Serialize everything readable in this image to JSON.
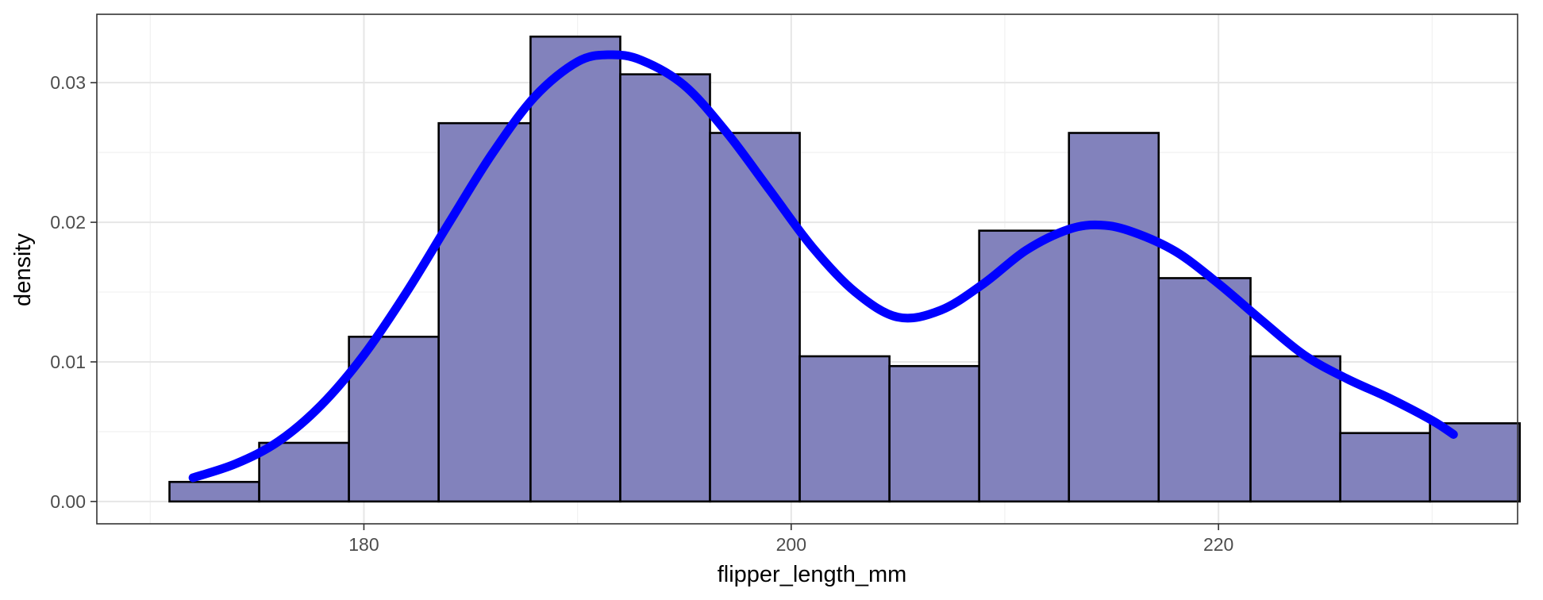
{
  "chart_data": {
    "type": "bar",
    "subtype": "histogram with density curve",
    "title": "",
    "xlabel": "flipper_length_mm",
    "ylabel": "density",
    "xlim": [
      167.5,
      234.0
    ],
    "ylim": [
      -0.0016,
      0.0349
    ],
    "x_ticks": [
      180,
      200,
      220
    ],
    "x_tick_labels": [
      "180",
      "200",
      "220"
    ],
    "x_minor_ticks": [
      170,
      190,
      210,
      230
    ],
    "y_ticks": [
      0.0,
      0.01,
      0.02,
      0.03
    ],
    "y_tick_labels": [
      "0.00",
      "0.01",
      "0.02",
      "0.03"
    ],
    "y_minor_ticks": [
      0.005,
      0.015,
      0.025
    ],
    "grid": true,
    "bins": [
      {
        "x_start": 170.9,
        "x_end": 175.1,
        "density": 0.0014
      },
      {
        "x_start": 175.1,
        "x_end": 179.3,
        "density": 0.0042
      },
      {
        "x_start": 179.3,
        "x_end": 183.5,
        "density": 0.0118
      },
      {
        "x_start": 183.5,
        "x_end": 187.8,
        "density": 0.0271
      },
      {
        "x_start": 187.8,
        "x_end": 192.0,
        "density": 0.0333
      },
      {
        "x_start": 192.0,
        "x_end": 196.2,
        "density": 0.0306
      },
      {
        "x_start": 196.2,
        "x_end": 200.4,
        "density": 0.0264
      },
      {
        "x_start": 200.4,
        "x_end": 204.6,
        "density": 0.0104
      },
      {
        "x_start": 204.6,
        "x_end": 208.8,
        "density": 0.0097
      },
      {
        "x_start": 208.8,
        "x_end": 213.0,
        "density": 0.0194
      },
      {
        "x_start": 213.0,
        "x_end": 217.2,
        "density": 0.0264
      },
      {
        "x_start": 217.2,
        "x_end": 221.5,
        "density": 0.016
      },
      {
        "x_start": 221.5,
        "x_end": 225.7,
        "density": 0.0104
      },
      {
        "x_start": 225.7,
        "x_end": 229.9,
        "density": 0.0049
      },
      {
        "x_start": 229.9,
        "x_end": 234.1,
        "density": 0.0056
      }
    ],
    "density_curve": {
      "x": [
        172,
        174,
        176,
        178,
        180,
        182,
        184,
        186,
        188,
        190,
        191.5,
        193,
        195,
        197,
        199,
        201,
        203,
        205,
        207,
        209,
        211,
        213,
        214.5,
        216,
        218,
        220,
        222,
        224,
        226,
        228,
        230,
        231
      ],
      "y": [
        0.0017,
        0.0027,
        0.0043,
        0.0069,
        0.0105,
        0.015,
        0.02,
        0.0249,
        0.029,
        0.0315,
        0.032,
        0.0316,
        0.0298,
        0.0264,
        0.0223,
        0.0182,
        0.015,
        0.0132,
        0.0137,
        0.0156,
        0.018,
        0.0195,
        0.0198,
        0.0193,
        0.0179,
        0.0156,
        0.013,
        0.0105,
        0.0088,
        0.0074,
        0.0058,
        0.0048
      ]
    },
    "colors": {
      "bar_fill": "#8080bb",
      "bar_stroke": "#000000",
      "curve": "#0000ff",
      "grid_major": "#e6e6e6",
      "grid_minor": "#f2f2f2",
      "panel_border": "#333333",
      "tick_label": "#4d4d4d"
    }
  }
}
